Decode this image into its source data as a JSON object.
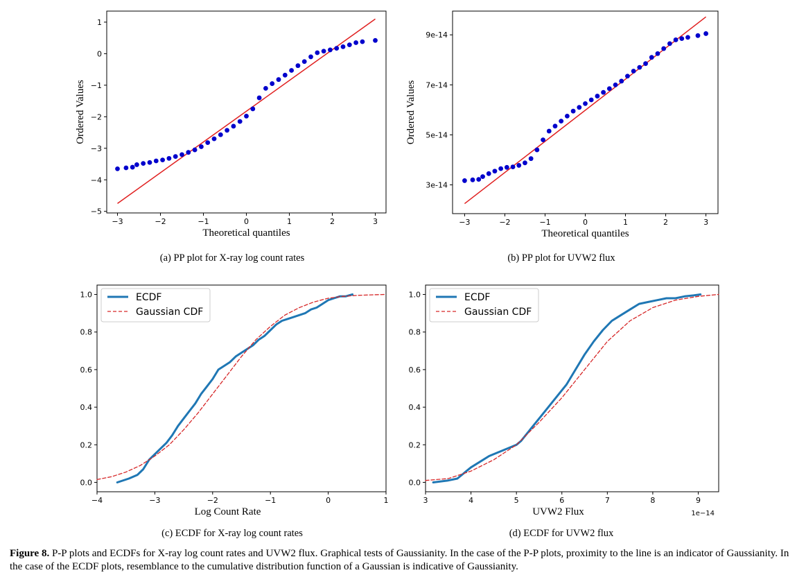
{
  "caption": {
    "label": "Figure 8.",
    "text": " P-P plots and ECDFs for X-ray log count rates and UVW2 flux. Graphical tests of Gaussianity. In the case of the P-P plots, proximity to the line is an indicator of Gaussianity. In the case of the ECDF plots, resemblance to the cumulative distribution function of a Gaussian is indicative of Gaussianity."
  },
  "chart_data": [
    {
      "id": "a",
      "type": "scatter",
      "subcaption": "(a) PP plot for X-ray log count rates",
      "xlabel": "Theoretical quantiles",
      "ylabel": "Ordered Values",
      "xlim": [
        -3.25,
        3.25
      ],
      "ylim": [
        -5.05,
        1.35
      ],
      "xticks": [
        -3,
        -2,
        -1,
        0,
        1,
        2,
        3
      ],
      "xtick_labels": [
        "−3",
        "−2",
        "−1",
        "0",
        "1",
        "2",
        "3"
      ],
      "yticks": [
        -5,
        -4,
        -3,
        -2,
        -1,
        0,
        1
      ],
      "ytick_labels": [
        "−5",
        "−4",
        "−3",
        "−2",
        "−1",
        "0",
        "1"
      ],
      "points_x": [
        -3.0,
        -2.8,
        -2.65,
        -2.55,
        -2.4,
        -2.25,
        -2.1,
        -1.95,
        -1.8,
        -1.65,
        -1.5,
        -1.35,
        -1.2,
        -1.05,
        -0.9,
        -0.75,
        -0.6,
        -0.45,
        -0.3,
        -0.15,
        0.0,
        0.15,
        0.3,
        0.45,
        0.6,
        0.75,
        0.9,
        1.05,
        1.2,
        1.35,
        1.5,
        1.65,
        1.8,
        1.95,
        2.1,
        2.25,
        2.4,
        2.55,
        2.7,
        3.0
      ],
      "points_y": [
        -3.65,
        -3.62,
        -3.6,
        -3.52,
        -3.48,
        -3.45,
        -3.4,
        -3.37,
        -3.32,
        -3.26,
        -3.2,
        -3.13,
        -3.05,
        -2.95,
        -2.82,
        -2.7,
        -2.57,
        -2.43,
        -2.3,
        -2.15,
        -1.98,
        -1.75,
        -1.4,
        -1.1,
        -0.95,
        -0.82,
        -0.68,
        -0.53,
        -0.38,
        -0.25,
        -0.1,
        0.03,
        0.08,
        0.12,
        0.17,
        0.22,
        0.28,
        0.35,
        0.38,
        0.42
      ],
      "fit_line": {
        "x": [
          -3.0,
          3.0
        ],
        "y": [
          -4.75,
          1.1
        ]
      },
      "point_color": "#0000cc",
      "line_color": "#e02020"
    },
    {
      "id": "b",
      "type": "scatter",
      "subcaption": "(b) PP plot for UVW2 flux",
      "xlabel": "Theoretical quantiles",
      "ylabel": "Ordered Values",
      "xlim": [
        -3.3,
        3.3
      ],
      "ylim": [
        1.85e-14,
        9.95e-14
      ],
      "xticks": [
        -3,
        -2,
        -1,
        0,
        1,
        2,
        3
      ],
      "xtick_labels": [
        "−3",
        "−2",
        "−1",
        "0",
        "1",
        "2",
        "3"
      ],
      "yticks": [
        3e-14,
        5e-14,
        7e-14,
        9e-14
      ],
      "ytick_labels": [
        "3e-14",
        "5e-14",
        "7e-14",
        "9e-14"
      ],
      "points_x": [
        -3.0,
        -2.8,
        -2.65,
        -2.55,
        -2.4,
        -2.25,
        -2.1,
        -1.95,
        -1.8,
        -1.65,
        -1.5,
        -1.35,
        -1.2,
        -1.05,
        -0.9,
        -0.75,
        -0.6,
        -0.45,
        -0.3,
        -0.15,
        0.0,
        0.15,
        0.3,
        0.45,
        0.6,
        0.75,
        0.9,
        1.05,
        1.2,
        1.35,
        1.5,
        1.65,
        1.8,
        1.95,
        2.1,
        2.25,
        2.4,
        2.55,
        2.8,
        3.0
      ],
      "points_y": [
        3.17e-14,
        3.2e-14,
        3.22e-14,
        3.33e-14,
        3.45e-14,
        3.55e-14,
        3.65e-14,
        3.7e-14,
        3.72e-14,
        3.78e-14,
        3.88e-14,
        4.05e-14,
        4.4e-14,
        4.8e-14,
        5.15e-14,
        5.35e-14,
        5.55e-14,
        5.75e-14,
        5.95e-14,
        6.1e-14,
        6.25e-14,
        6.4e-14,
        6.55e-14,
        6.7e-14,
        6.85e-14,
        7e-14,
        7.15e-14,
        7.35e-14,
        7.55e-14,
        7.7e-14,
        7.85e-14,
        8.1e-14,
        8.25e-14,
        8.45e-14,
        8.65e-14,
        8.8e-14,
        8.85e-14,
        8.9e-14,
        8.97e-14,
        9.05e-14
      ],
      "fit_line": {
        "x": [
          -3.0,
          3.0
        ],
        "y": [
          2.25e-14,
          9.72e-14
        ]
      },
      "point_color": "#0000cc",
      "line_color": "#e02020"
    },
    {
      "id": "c",
      "type": "line",
      "subcaption": "(c) ECDF for X-ray log count rates",
      "xlabel": "Log Count Rate",
      "ylabel": "",
      "xlim": [
        -4,
        1
      ],
      "ylim": [
        -0.05,
        1.05
      ],
      "xticks": [
        -4,
        -3,
        -2,
        -1,
        0,
        1
      ],
      "xtick_labels": [
        "−4",
        "−3",
        "−2",
        "−1",
        "0",
        "1"
      ],
      "yticks": [
        0,
        0.2,
        0.4,
        0.6,
        0.8,
        1.0
      ],
      "ytick_labels": [
        "0.0",
        "0.2",
        "0.4",
        "0.6",
        "0.8",
        "1.0"
      ],
      "legend": [
        "ECDF",
        "Gaussian CDF"
      ],
      "legend_position": "top-left",
      "series": [
        {
          "name": "ECDF",
          "color": "#1f77b4",
          "style": "solid",
          "x": [
            -3.65,
            -3.45,
            -3.3,
            -3.2,
            -3.1,
            -3.0,
            -2.9,
            -2.8,
            -2.7,
            -2.6,
            -2.5,
            -2.4,
            -2.3,
            -2.2,
            -2.1,
            -2.0,
            -1.9,
            -1.8,
            -1.7,
            -1.6,
            -1.5,
            -1.4,
            -1.3,
            -1.2,
            -1.1,
            -1.0,
            -0.9,
            -0.8,
            -0.7,
            -0.6,
            -0.5,
            -0.4,
            -0.3,
            -0.2,
            -0.1,
            0.0,
            0.1,
            0.2,
            0.3,
            0.42
          ],
          "y": [
            0.0,
            0.02,
            0.04,
            0.07,
            0.12,
            0.15,
            0.18,
            0.21,
            0.25,
            0.3,
            0.34,
            0.38,
            0.42,
            0.47,
            0.51,
            0.55,
            0.6,
            0.62,
            0.64,
            0.67,
            0.69,
            0.71,
            0.73,
            0.76,
            0.78,
            0.81,
            0.84,
            0.86,
            0.87,
            0.88,
            0.89,
            0.9,
            0.92,
            0.93,
            0.95,
            0.97,
            0.98,
            0.99,
            0.99,
            1.0
          ]
        },
        {
          "name": "Gaussian CDF",
          "color": "#d62728",
          "style": "dashed",
          "x": [
            -4.0,
            -3.75,
            -3.5,
            -3.25,
            -3.0,
            -2.75,
            -2.5,
            -2.25,
            -2.0,
            -1.75,
            -1.5,
            -1.25,
            -1.0,
            -0.75,
            -0.5,
            -0.25,
            0.0,
            0.25,
            0.5,
            0.75,
            1.0
          ],
          "y": [
            0.015,
            0.03,
            0.055,
            0.09,
            0.14,
            0.2,
            0.28,
            0.37,
            0.47,
            0.57,
            0.67,
            0.76,
            0.83,
            0.89,
            0.93,
            0.96,
            0.98,
            0.99,
            0.995,
            0.998,
            1.0
          ]
        }
      ]
    },
    {
      "id": "d",
      "type": "line",
      "subcaption": "(d) ECDF for UVW2 flux",
      "xlabel": "UVW2 Flux",
      "ylabel": "",
      "x_offset_label": "1e−14",
      "xlim": [
        3,
        9.45
      ],
      "ylim": [
        -0.05,
        1.05
      ],
      "xticks": [
        3,
        4,
        5,
        6,
        7,
        8,
        9
      ],
      "xtick_labels": [
        "3",
        "4",
        "5",
        "6",
        "7",
        "8",
        "9"
      ],
      "yticks": [
        0,
        0.2,
        0.4,
        0.6,
        0.8,
        1.0
      ],
      "ytick_labels": [
        "0.0",
        "0.2",
        "0.4",
        "0.6",
        "0.8",
        "1.0"
      ],
      "legend": [
        "ECDF",
        "Gaussian CDF"
      ],
      "legend_position": "top-left",
      "series": [
        {
          "name": "ECDF",
          "color": "#1f77b4",
          "style": "solid",
          "x": [
            3.17,
            3.5,
            3.7,
            3.8,
            3.9,
            4.0,
            4.2,
            4.4,
            4.6,
            4.8,
            5.0,
            5.1,
            5.3,
            5.5,
            5.7,
            5.9,
            6.1,
            6.3,
            6.5,
            6.7,
            6.9,
            7.1,
            7.3,
            7.5,
            7.7,
            7.9,
            8.1,
            8.3,
            8.5,
            8.7,
            8.9,
            9.05
          ],
          "y": [
            0.0,
            0.01,
            0.02,
            0.04,
            0.06,
            0.08,
            0.11,
            0.14,
            0.16,
            0.18,
            0.2,
            0.22,
            0.28,
            0.34,
            0.4,
            0.46,
            0.52,
            0.6,
            0.68,
            0.75,
            0.81,
            0.86,
            0.89,
            0.92,
            0.95,
            0.96,
            0.97,
            0.98,
            0.98,
            0.99,
            0.995,
            1.0
          ]
        },
        {
          "name": "Gaussian CDF",
          "color": "#d62728",
          "style": "dashed",
          "x": [
            3.0,
            3.5,
            4.0,
            4.5,
            5.0,
            5.5,
            6.0,
            6.5,
            7.0,
            7.5,
            8.0,
            8.5,
            9.0,
            9.45
          ],
          "y": [
            0.01,
            0.02,
            0.06,
            0.12,
            0.2,
            0.32,
            0.45,
            0.6,
            0.75,
            0.86,
            0.93,
            0.97,
            0.99,
            1.0
          ]
        }
      ]
    }
  ]
}
